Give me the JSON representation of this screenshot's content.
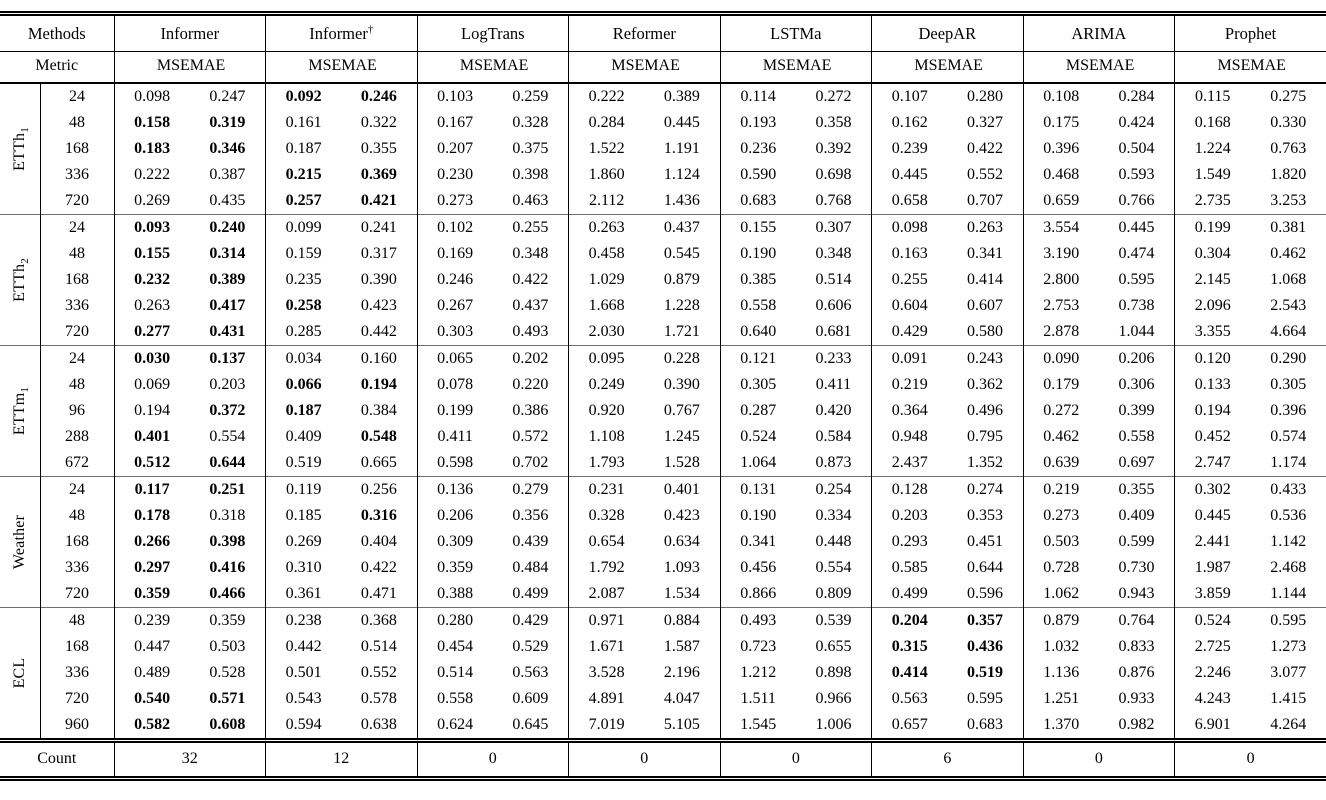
{
  "colors": {
    "text": "#000000",
    "background": "#ffffff",
    "rule": "#000000",
    "block_divider": "#6e6e6e"
  },
  "table": {
    "bold_marker": "**",
    "header": {
      "methods_label": "Methods",
      "metric_label": "Metric",
      "mse": "MSE",
      "mae": "MAE",
      "methods": [
        {
          "name": "Informer",
          "sup": ""
        },
        {
          "name": "Informer",
          "sup": "†"
        },
        {
          "name": "LogTrans",
          "sup": ""
        },
        {
          "name": "Reformer",
          "sup": ""
        },
        {
          "name": "LSTMa",
          "sup": ""
        },
        {
          "name": "DeepAR",
          "sup": ""
        },
        {
          "name": "ARIMA",
          "sup": ""
        },
        {
          "name": "Prophet",
          "sup": ""
        }
      ]
    },
    "datasets": [
      {
        "base": "ETTh",
        "sub": "1",
        "horizons": [
          "24",
          "48",
          "168",
          "336",
          "720"
        ],
        "rows": [
          [
            [
              "0.098",
              "0.247"
            ],
            [
              "**0.092**",
              "**0.246**"
            ],
            [
              "0.103",
              "0.259"
            ],
            [
              "0.222",
              "0.389"
            ],
            [
              "0.114",
              "0.272"
            ],
            [
              "0.107",
              "0.280"
            ],
            [
              "0.108",
              "0.284"
            ],
            [
              "0.115",
              "0.275"
            ]
          ],
          [
            [
              "**0.158**",
              "**0.319**"
            ],
            [
              "0.161",
              "0.322"
            ],
            [
              "0.167",
              "0.328"
            ],
            [
              "0.284",
              "0.445"
            ],
            [
              "0.193",
              "0.358"
            ],
            [
              "0.162",
              "0.327"
            ],
            [
              "0.175",
              "0.424"
            ],
            [
              "0.168",
              "0.330"
            ]
          ],
          [
            [
              "**0.183**",
              "**0.346**"
            ],
            [
              "0.187",
              "0.355"
            ],
            [
              "0.207",
              "0.375"
            ],
            [
              "1.522",
              "1.191"
            ],
            [
              "0.236",
              "0.392"
            ],
            [
              "0.239",
              "0.422"
            ],
            [
              "0.396",
              "0.504"
            ],
            [
              "1.224",
              "0.763"
            ]
          ],
          [
            [
              "0.222",
              "0.387"
            ],
            [
              "**0.215**",
              "**0.369**"
            ],
            [
              "0.230",
              "0.398"
            ],
            [
              "1.860",
              "1.124"
            ],
            [
              "0.590",
              "0.698"
            ],
            [
              "0.445",
              "0.552"
            ],
            [
              "0.468",
              "0.593"
            ],
            [
              "1.549",
              "1.820"
            ]
          ],
          [
            [
              "0.269",
              "0.435"
            ],
            [
              "**0.257**",
              "**0.421**"
            ],
            [
              "0.273",
              "0.463"
            ],
            [
              "2.112",
              "1.436"
            ],
            [
              "0.683",
              "0.768"
            ],
            [
              "0.658",
              "0.707"
            ],
            [
              "0.659",
              "0.766"
            ],
            [
              "2.735",
              "3.253"
            ]
          ]
        ]
      },
      {
        "base": "ETTh",
        "sub": "2",
        "horizons": [
          "24",
          "48",
          "168",
          "336",
          "720"
        ],
        "rows": [
          [
            [
              "**0.093**",
              "**0.240**"
            ],
            [
              "0.099",
              "0.241"
            ],
            [
              "0.102",
              "0.255"
            ],
            [
              "0.263",
              "0.437"
            ],
            [
              "0.155",
              "0.307"
            ],
            [
              "0.098",
              "0.263"
            ],
            [
              "3.554",
              "0.445"
            ],
            [
              "0.199",
              "0.381"
            ]
          ],
          [
            [
              "**0.155**",
              "**0.314**"
            ],
            [
              "0.159",
              "0.317"
            ],
            [
              "0.169",
              "0.348"
            ],
            [
              "0.458",
              "0.545"
            ],
            [
              "0.190",
              "0.348"
            ],
            [
              "0.163",
              "0.341"
            ],
            [
              "3.190",
              "0.474"
            ],
            [
              "0.304",
              "0.462"
            ]
          ],
          [
            [
              "**0.232**",
              "**0.389**"
            ],
            [
              "0.235",
              "0.390"
            ],
            [
              "0.246",
              "0.422"
            ],
            [
              "1.029",
              "0.879"
            ],
            [
              "0.385",
              "0.514"
            ],
            [
              "0.255",
              "0.414"
            ],
            [
              "2.800",
              "0.595"
            ],
            [
              "2.145",
              "1.068"
            ]
          ],
          [
            [
              "0.263",
              "**0.417**"
            ],
            [
              "**0.258**",
              "0.423"
            ],
            [
              "0.267",
              "0.437"
            ],
            [
              "1.668",
              "1.228"
            ],
            [
              "0.558",
              "0.606"
            ],
            [
              "0.604",
              "0.607"
            ],
            [
              "2.753",
              "0.738"
            ],
            [
              "2.096",
              "2.543"
            ]
          ],
          [
            [
              "**0.277**",
              "**0.431**"
            ],
            [
              "0.285",
              "0.442"
            ],
            [
              "0.303",
              "0.493"
            ],
            [
              "2.030",
              "1.721"
            ],
            [
              "0.640",
              "0.681"
            ],
            [
              "0.429",
              "0.580"
            ],
            [
              "2.878",
              "1.044"
            ],
            [
              "3.355",
              "4.664"
            ]
          ]
        ]
      },
      {
        "base": "ETTm",
        "sub": "1",
        "horizons": [
          "24",
          "48",
          "96",
          "288",
          "672"
        ],
        "rows": [
          [
            [
              "**0.030**",
              "**0.137**"
            ],
            [
              "0.034",
              "0.160"
            ],
            [
              "0.065",
              "0.202"
            ],
            [
              "0.095",
              "0.228"
            ],
            [
              "0.121",
              "0.233"
            ],
            [
              "0.091",
              "0.243"
            ],
            [
              "0.090",
              "0.206"
            ],
            [
              "0.120",
              "0.290"
            ]
          ],
          [
            [
              "0.069",
              "0.203"
            ],
            [
              "**0.066**",
              "**0.194**"
            ],
            [
              "0.078",
              "0.220"
            ],
            [
              "0.249",
              "0.390"
            ],
            [
              "0.305",
              "0.411"
            ],
            [
              "0.219",
              "0.362"
            ],
            [
              "0.179",
              "0.306"
            ],
            [
              "0.133",
              "0.305"
            ]
          ],
          [
            [
              "0.194",
              "**0.372**"
            ],
            [
              "**0.187**",
              "0.384"
            ],
            [
              "0.199",
              "0.386"
            ],
            [
              "0.920",
              "0.767"
            ],
            [
              "0.287",
              "0.420"
            ],
            [
              "0.364",
              "0.496"
            ],
            [
              "0.272",
              "0.399"
            ],
            [
              "0.194",
              "0.396"
            ]
          ],
          [
            [
              "**0.401**",
              "0.554"
            ],
            [
              "0.409",
              "**0.548**"
            ],
            [
              "0.411",
              "0.572"
            ],
            [
              "1.108",
              "1.245"
            ],
            [
              "0.524",
              "0.584"
            ],
            [
              "0.948",
              "0.795"
            ],
            [
              "0.462",
              "0.558"
            ],
            [
              "0.452",
              "0.574"
            ]
          ],
          [
            [
              "**0.512**",
              "**0.644**"
            ],
            [
              "0.519",
              "0.665"
            ],
            [
              "0.598",
              "0.702"
            ],
            [
              "1.793",
              "1.528"
            ],
            [
              "1.064",
              "0.873"
            ],
            [
              "2.437",
              "1.352"
            ],
            [
              "0.639",
              "0.697"
            ],
            [
              "2.747",
              "1.174"
            ]
          ]
        ]
      },
      {
        "base": "Weather",
        "sub": "",
        "horizons": [
          "24",
          "48",
          "168",
          "336",
          "720"
        ],
        "rows": [
          [
            [
              "**0.117**",
              "**0.251**"
            ],
            [
              "0.119",
              "0.256"
            ],
            [
              "0.136",
              "0.279"
            ],
            [
              "0.231",
              "0.401"
            ],
            [
              "0.131",
              "0.254"
            ],
            [
              "0.128",
              "0.274"
            ],
            [
              "0.219",
              "0.355"
            ],
            [
              "0.302",
              "0.433"
            ]
          ],
          [
            [
              "**0.178**",
              "0.318"
            ],
            [
              "0.185",
              "**0.316**"
            ],
            [
              "0.206",
              "0.356"
            ],
            [
              "0.328",
              "0.423"
            ],
            [
              "0.190",
              "0.334"
            ],
            [
              "0.203",
              "0.353"
            ],
            [
              "0.273",
              "0.409"
            ],
            [
              "0.445",
              "0.536"
            ]
          ],
          [
            [
              "**0.266**",
              "**0.398**"
            ],
            [
              "0.269",
              "0.404"
            ],
            [
              "0.309",
              "0.439"
            ],
            [
              "0.654",
              "0.634"
            ],
            [
              "0.341",
              "0.448"
            ],
            [
              "0.293",
              "0.451"
            ],
            [
              "0.503",
              "0.599"
            ],
            [
              "2.441",
              "1.142"
            ]
          ],
          [
            [
              "**0.297**",
              "**0.416**"
            ],
            [
              "0.310",
              "0.422"
            ],
            [
              "0.359",
              "0.484"
            ],
            [
              "1.792",
              "1.093"
            ],
            [
              "0.456",
              "0.554"
            ],
            [
              "0.585",
              "0.644"
            ],
            [
              "0.728",
              "0.730"
            ],
            [
              "1.987",
              "2.468"
            ]
          ],
          [
            [
              "**0.359**",
              "**0.466**"
            ],
            [
              "0.361",
              "0.471"
            ],
            [
              "0.388",
              "0.499"
            ],
            [
              "2.087",
              "1.534"
            ],
            [
              "0.866",
              "0.809"
            ],
            [
              "0.499",
              "0.596"
            ],
            [
              "1.062",
              "0.943"
            ],
            [
              "3.859",
              "1.144"
            ]
          ]
        ]
      },
      {
        "base": "ECL",
        "sub": "",
        "horizons": [
          "48",
          "168",
          "336",
          "720",
          "960"
        ],
        "rows": [
          [
            [
              "0.239",
              "0.359"
            ],
            [
              "0.238",
              "0.368"
            ],
            [
              "0.280",
              "0.429"
            ],
            [
              "0.971",
              "0.884"
            ],
            [
              "0.493",
              "0.539"
            ],
            [
              "**0.204**",
              "**0.357**"
            ],
            [
              "0.879",
              "0.764"
            ],
            [
              "0.524",
              "0.595"
            ]
          ],
          [
            [
              "0.447",
              "0.503"
            ],
            [
              "0.442",
              "0.514"
            ],
            [
              "0.454",
              "0.529"
            ],
            [
              "1.671",
              "1.587"
            ],
            [
              "0.723",
              "0.655"
            ],
            [
              "**0.315**",
              "**0.436**"
            ],
            [
              "1.032",
              "0.833"
            ],
            [
              "2.725",
              "1.273"
            ]
          ],
          [
            [
              "0.489",
              "0.528"
            ],
            [
              "0.501",
              "0.552"
            ],
            [
              "0.514",
              "0.563"
            ],
            [
              "3.528",
              "2.196"
            ],
            [
              "1.212",
              "0.898"
            ],
            [
              "**0.414**",
              "**0.519**"
            ],
            [
              "1.136",
              "0.876"
            ],
            [
              "2.246",
              "3.077"
            ]
          ],
          [
            [
              "**0.540**",
              "**0.571**"
            ],
            [
              "0.543",
              "0.578"
            ],
            [
              "0.558",
              "0.609"
            ],
            [
              "4.891",
              "4.047"
            ],
            [
              "1.511",
              "0.966"
            ],
            [
              "0.563",
              "0.595"
            ],
            [
              "1.251",
              "0.933"
            ],
            [
              "4.243",
              "1.415"
            ]
          ],
          [
            [
              "**0.582**",
              "**0.608**"
            ],
            [
              "0.594",
              "0.638"
            ],
            [
              "0.624",
              "0.645"
            ],
            [
              "7.019",
              "5.105"
            ],
            [
              "1.545",
              "1.006"
            ],
            [
              "0.657",
              "0.683"
            ],
            [
              "1.370",
              "0.982"
            ],
            [
              "6.901",
              "4.264"
            ]
          ]
        ]
      }
    ],
    "count": {
      "label": "Count",
      "values": [
        "32",
        "12",
        "0",
        "0",
        "0",
        "6",
        "0",
        "0"
      ]
    }
  }
}
